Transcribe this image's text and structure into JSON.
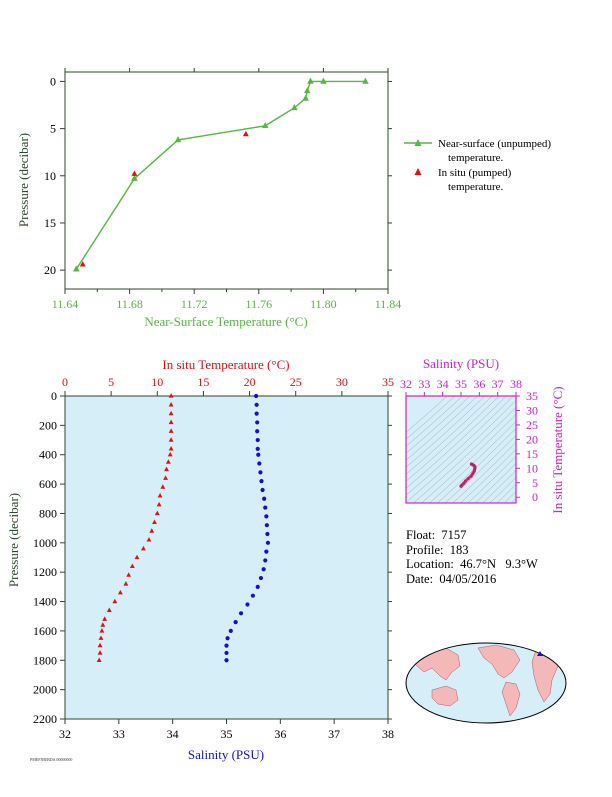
{
  "colors": {
    "green": "#55b840",
    "red": "#e01010",
    "blue": "#1010d0",
    "magenta": "#d020d0",
    "pink": "#e0407a",
    "panel_bg": "#d5eef8",
    "axis": "#2b4a2b",
    "land": "#f4b8b8",
    "ocean": "#d5eef8"
  },
  "legend": {
    "near_surface": "Near-surface (unpumped)",
    "near_surface_2": "temperature.",
    "in_situ": "In situ (pumped)",
    "in_situ_2": "temperature."
  },
  "info": {
    "float_line": "Float:  7157",
    "profile_line": "Profile:  183",
    "location_line": "Location:  46.7°N   9.3°W",
    "date_line": "Date:  04/05/2016"
  },
  "footer": "PMEFNB/BDA 00000000",
  "chart_data": [
    {
      "id": "near_surface",
      "type": "line",
      "xlabel": "Near-Surface Temperature (°C)",
      "ylabel": "Pressure (decibar)",
      "xlim": [
        11.64,
        11.84
      ],
      "ylim": [
        22,
        -1
      ],
      "xticks": [
        "11.64",
        "11.68",
        "11.72",
        "11.76",
        "11.80",
        "11.84"
      ],
      "yticks": [
        "0",
        "5",
        "10",
        "15",
        "20"
      ],
      "series": [
        {
          "name": "Near-surface (unpumped) temperature.",
          "marker": "triangle",
          "line": true,
          "points": [
            [
              11.826,
              0.0
            ],
            [
              11.8,
              0.0
            ],
            [
              11.792,
              0.0
            ],
            [
              11.79,
              1.0
            ],
            [
              11.789,
              1.8
            ],
            [
              11.782,
              2.8
            ],
            [
              11.764,
              4.7
            ],
            [
              11.71,
              6.2
            ],
            [
              11.683,
              10.3
            ],
            [
              11.647,
              19.9
            ]
          ]
        },
        {
          "name": "In situ (pumped) temperature.",
          "marker": "triangle",
          "line": false,
          "points": [
            [
              11.752,
              5.6
            ],
            [
              11.683,
              9.8
            ],
            [
              11.651,
              19.4
            ]
          ]
        }
      ]
    },
    {
      "id": "profile",
      "type": "scatter",
      "xlabel": "Salinity (PSU)",
      "x2label": "In situ Temperature (°C)",
      "ylabel": "Pressure (decibar)",
      "xlim": [
        32,
        38
      ],
      "x2lim": [
        0,
        35
      ],
      "ylim": [
        2200,
        0
      ],
      "xticks": [
        "32",
        "33",
        "34",
        "35",
        "36",
        "37",
        "38"
      ],
      "x2ticks": [
        "0",
        "5",
        "10",
        "15",
        "20",
        "25",
        "30",
        "35"
      ],
      "yticks": [
        "0",
        "200",
        "400",
        "600",
        "800",
        "1000",
        "1200",
        "1400",
        "1600",
        "1800",
        "2000",
        "2200"
      ],
      "temperature": [
        [
          11.5,
          0
        ],
        [
          11.5,
          60
        ],
        [
          11.5,
          120
        ],
        [
          11.5,
          180
        ],
        [
          11.5,
          240
        ],
        [
          11.5,
          300
        ],
        [
          11.5,
          360
        ],
        [
          11.4,
          400
        ],
        [
          11.2,
          450
        ],
        [
          11.0,
          500
        ],
        [
          10.9,
          560
        ],
        [
          10.6,
          620
        ],
        [
          10.3,
          680
        ],
        [
          10.2,
          740
        ],
        [
          10.0,
          800
        ],
        [
          9.7,
          860
        ],
        [
          9.4,
          920
        ],
        [
          9.1,
          980
        ],
        [
          8.5,
          1040
        ],
        [
          7.8,
          1100
        ],
        [
          7.3,
          1160
        ],
        [
          6.9,
          1220
        ],
        [
          6.6,
          1280
        ],
        [
          6.0,
          1340
        ],
        [
          5.4,
          1400
        ],
        [
          4.8,
          1460
        ],
        [
          4.3,
          1520
        ],
        [
          4.1,
          1560
        ],
        [
          4.0,
          1600
        ],
        [
          3.9,
          1650
        ],
        [
          3.8,
          1700
        ],
        [
          3.8,
          1750
        ],
        [
          3.7,
          1800
        ]
      ],
      "salinity": [
        [
          35.55,
          0
        ],
        [
          35.56,
          60
        ],
        [
          35.56,
          120
        ],
        [
          35.57,
          180
        ],
        [
          35.57,
          240
        ],
        [
          35.58,
          300
        ],
        [
          35.58,
          360
        ],
        [
          35.59,
          400
        ],
        [
          35.61,
          460
        ],
        [
          35.63,
          520
        ],
        [
          35.65,
          580
        ],
        [
          35.67,
          640
        ],
        [
          35.7,
          700
        ],
        [
          35.72,
          760
        ],
        [
          35.74,
          820
        ],
        [
          35.75,
          880
        ],
        [
          35.76,
          940
        ],
        [
          35.77,
          1000
        ],
        [
          35.74,
          1060
        ],
        [
          35.72,
          1120
        ],
        [
          35.69,
          1180
        ],
        [
          35.64,
          1240
        ],
        [
          35.58,
          1300
        ],
        [
          35.49,
          1360
        ],
        [
          35.39,
          1420
        ],
        [
          35.27,
          1480
        ],
        [
          35.17,
          1540
        ],
        [
          35.08,
          1600
        ],
        [
          35.02,
          1650
        ],
        [
          35.0,
          1700
        ],
        [
          35.0,
          1750
        ],
        [
          35.0,
          1800
        ]
      ]
    },
    {
      "id": "ts_diagram",
      "type": "scatter",
      "xlabel": "Salinity (PSU)",
      "ylabel": "In situ Temperature (°C)",
      "xlim": [
        32,
        38
      ],
      "ylim": [
        -2,
        35
      ],
      "xticks": [
        "32",
        "33",
        "34",
        "35",
        "36",
        "37",
        "38"
      ],
      "yticks": [
        "0",
        "5",
        "10",
        "15",
        "20",
        "25",
        "30",
        "35"
      ],
      "points": [
        [
          35.0,
          3.8
        ],
        [
          35.05,
          4.2
        ],
        [
          35.15,
          4.8
        ],
        [
          35.25,
          5.6
        ],
        [
          35.4,
          6.5
        ],
        [
          35.55,
          7.3
        ],
        [
          35.65,
          8.2
        ],
        [
          35.72,
          9.0
        ],
        [
          35.75,
          9.8
        ],
        [
          35.76,
          10.5
        ],
        [
          35.7,
          11.0
        ],
        [
          35.62,
          11.3
        ],
        [
          35.57,
          11.5
        ]
      ]
    }
  ]
}
